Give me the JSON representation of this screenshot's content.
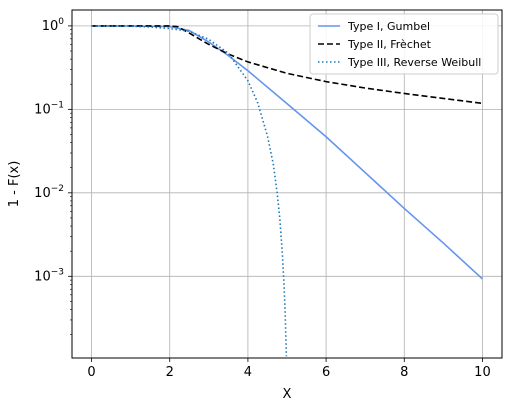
{
  "chart_data": {
    "type": "line",
    "xlabel": "X",
    "ylabel": "1 - F(x)",
    "xscale": "linear",
    "yscale": "log",
    "xlim": [
      -0.5,
      10.5
    ],
    "ylim": [
      0.000105,
      1.55
    ],
    "grid": true,
    "legend_position": "top-right",
    "x_ticks": [
      0,
      2,
      4,
      6,
      8,
      10
    ],
    "x_tick_labels": [
      "0",
      "2",
      "4",
      "6",
      "8",
      "10"
    ],
    "y_ticks": [
      1,
      0.1,
      0.01,
      0.001
    ],
    "y_tick_labels": [
      {
        "base": "10",
        "exp": "0"
      },
      {
        "base": "10",
        "exp": "−1"
      },
      {
        "base": "10",
        "exp": "−2"
      },
      {
        "base": "10",
        "exp": "−3"
      }
    ],
    "series": [
      {
        "name": "Type I, Gumbel",
        "color": "#6495ed",
        "style": "solid",
        "x": [
          0,
          1,
          2,
          2.5,
          3,
          3.5,
          4,
          5,
          6,
          7,
          8,
          9,
          10
        ],
        "y": [
          1.0,
          1.0,
          0.98,
          0.88,
          0.64,
          0.44,
          0.29,
          0.117,
          0.047,
          0.0175,
          0.0065,
          0.0025,
          0.00093
        ]
      },
      {
        "name": "Type II, Frèchet",
        "color": "#000000",
        "style": "dashed",
        "x": [
          0,
          1,
          2,
          2.2,
          2.5,
          3,
          3.5,
          4,
          5,
          6,
          7,
          8,
          9,
          10
        ],
        "y": [
          1.0,
          1.0,
          1.0,
          0.98,
          0.82,
          0.6,
          0.46,
          0.37,
          0.27,
          0.215,
          0.18,
          0.155,
          0.135,
          0.118
        ]
      },
      {
        "name": "Type III, Reverse Weibull",
        "color": "#1f77b4",
        "style": "dotted",
        "x": [
          0,
          0.5,
          1,
          1.5,
          2,
          2.5,
          3,
          3.5,
          4,
          4.25,
          4.5,
          4.65,
          4.75,
          4.82,
          4.88,
          4.92,
          4.95,
          4.97,
          4.985
        ],
        "y": [
          1.0,
          1.0,
          0.99,
          0.97,
          0.93,
          0.86,
          0.69,
          0.47,
          0.22,
          0.12,
          0.048,
          0.022,
          0.0098,
          0.0047,
          0.0019,
          0.00086,
          0.0004,
          0.00019,
          0.00011
        ]
      }
    ]
  }
}
